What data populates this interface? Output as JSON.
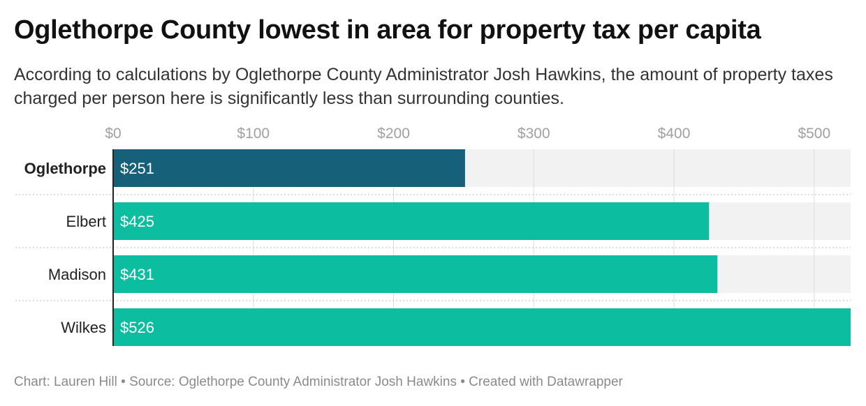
{
  "header": {
    "title": "Oglethorpe County lowest in area for property tax per capita",
    "subtitle": "According to calculations by Oglethorpe County Administrator Josh Hawkins, the amount of property taxes charged per person here is significantly less than surrounding counties."
  },
  "chart_data": {
    "type": "bar",
    "orientation": "horizontal",
    "categories": [
      "Oglethorpe",
      "Elbert",
      "Madison",
      "Wilkes"
    ],
    "values": [
      251,
      425,
      431,
      526
    ],
    "value_labels": [
      "$251",
      "$425",
      "$431",
      "$526"
    ],
    "highlight_category": "Oglethorpe",
    "xlim": [
      0,
      526
    ],
    "x_ticks": [
      0,
      100,
      200,
      300,
      400,
      500
    ],
    "x_tick_labels": [
      "$0",
      "$100",
      "$200",
      "$300",
      "$400",
      "$500"
    ],
    "x_axis_position": "top",
    "grid": true,
    "colors": {
      "highlight": "#17607a",
      "bar": "#0dbda0",
      "track": "#f2f2f2",
      "gridline": "#dddddd",
      "separator": "#c8c8c8",
      "tick_label": "#a0a0a0",
      "value_label": "#ffffff"
    }
  },
  "footer": {
    "chart_credit": "Chart: Lauren Hill",
    "separator": " • ",
    "source": "Source: Oglethorpe County Administrator Josh Hawkins",
    "created_with": "Created with Datawrapper"
  }
}
